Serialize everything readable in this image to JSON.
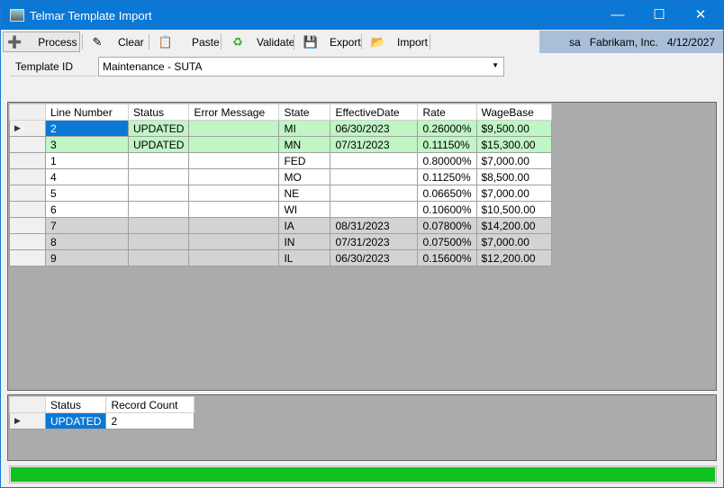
{
  "window": {
    "title": "Telmar Template Import",
    "minimize": "—",
    "maximize": "☐",
    "close": "✕"
  },
  "toolbar": {
    "items": [
      {
        "label": "Process",
        "icon": "process-icon",
        "glyph": "➕"
      },
      {
        "label": "Clear",
        "icon": "eraser-icon",
        "glyph": "✎"
      },
      {
        "label": "Paste",
        "icon": "paste-icon",
        "glyph": "📋"
      },
      {
        "label": "Validate",
        "icon": "validate-icon",
        "glyph": "♻"
      },
      {
        "label": "Export",
        "icon": "save-icon",
        "glyph": "💾"
      },
      {
        "label": "Import",
        "icon": "folder-open-icon",
        "glyph": "📂"
      }
    ]
  },
  "status": {
    "user": "sa",
    "company": "Fabrikam, Inc.",
    "date": "4/12/2027"
  },
  "template": {
    "label": "Template ID",
    "value": "Maintenance - SUTA"
  },
  "grid": {
    "columns": [
      "Line Number",
      "Status",
      "Error Message",
      "State",
      "EffectiveDate",
      "Rate",
      "WageBase"
    ],
    "rows": [
      [
        "2",
        "UPDATED",
        "",
        "MI",
        "06/30/2023",
        "0.26000%",
        "$9,500.00"
      ],
      [
        "3",
        "UPDATED",
        "",
        "MN",
        "07/31/2023",
        "0.11150%",
        "$15,300.00"
      ],
      [
        "1",
        "",
        "",
        "FED",
        "",
        "0.80000%",
        "$7,000.00"
      ],
      [
        "4",
        "",
        "",
        "MO",
        "",
        "0.11250%",
        "$8,500.00"
      ],
      [
        "5",
        "",
        "",
        "NE",
        "",
        "0.06650%",
        "$7,000.00"
      ],
      [
        "6",
        "",
        "",
        "WI",
        "",
        "0.10600%",
        "$10,500.00"
      ],
      [
        "7",
        "",
        "",
        "IA",
        "08/31/2023",
        "0.07800%",
        "$14,200.00"
      ],
      [
        "8",
        "",
        "",
        "IN",
        "07/31/2023",
        "0.07500%",
        "$7,000.00"
      ],
      [
        "9",
        "",
        "",
        "IL",
        "06/30/2023",
        "0.15600%",
        "$12,200.00"
      ]
    ]
  },
  "summary": {
    "columns": [
      "Status",
      "Record Count"
    ],
    "rows": [
      [
        "UPDATED",
        "2"
      ]
    ]
  },
  "progress": {
    "percent": 100,
    "color": "#11c11f"
  }
}
